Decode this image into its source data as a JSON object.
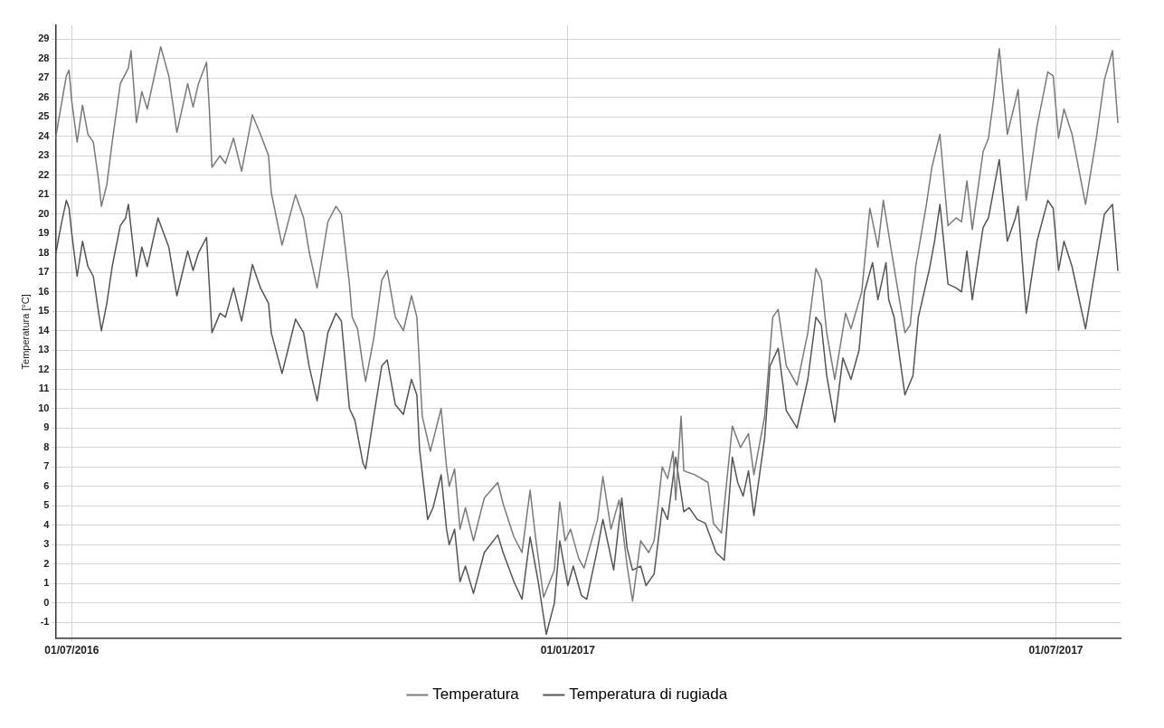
{
  "chart_data": {
    "type": "line",
    "ylabel": "Temperatura [°C]",
    "xlim": [
      "2016-06-25",
      "2017-07-25"
    ],
    "ylim": [
      -1.8,
      29.7
    ],
    "xticks": [
      {
        "value": "2016-07-01",
        "label": "01/07/2016"
      },
      {
        "value": "2017-01-01",
        "label": "01/01/2017"
      },
      {
        "value": "2017-07-01",
        "label": "01/07/2017"
      }
    ],
    "yticks": [
      -1,
      0,
      1,
      2,
      3,
      4,
      5,
      6,
      7,
      8,
      9,
      10,
      11,
      12,
      13,
      14,
      15,
      16,
      17,
      18,
      19,
      20,
      21,
      22,
      23,
      24,
      25,
      26,
      27,
      28,
      29
    ],
    "grid": true,
    "legend": "bottom",
    "marker": "none",
    "line_style": "solid",
    "series": [
      {
        "name": "Temperatura",
        "color": "#7a7a7a",
        "x": [
          "2016-06-25",
          "2016-06-26",
          "2016-06-29",
          "2016-06-30",
          "2016-07-01",
          "2016-07-03",
          "2016-07-05",
          "2016-07-07",
          "2016-07-09",
          "2016-07-11",
          "2016-07-12",
          "2016-07-14",
          "2016-07-16",
          "2016-07-19",
          "2016-07-22",
          "2016-07-23",
          "2016-07-25",
          "2016-07-27",
          "2016-07-29",
          "2016-08-03",
          "2016-08-06",
          "2016-08-09",
          "2016-08-13",
          "2016-08-15",
          "2016-08-17",
          "2016-08-20",
          "2016-08-21",
          "2016-08-22",
          "2016-08-25",
          "2016-08-27",
          "2016-08-30",
          "2016-09-02",
          "2016-09-06",
          "2016-09-09",
          "2016-09-12",
          "2016-09-13",
          "2016-09-17",
          "2016-09-22",
          "2016-09-25",
          "2016-09-27",
          "2016-09-30",
          "2016-10-04",
          "2016-10-07",
          "2016-10-09",
          "2016-10-12",
          "2016-10-13",
          "2016-10-15",
          "2016-10-17",
          "2016-10-18",
          "2016-10-21",
          "2016-10-24",
          "2016-10-26",
          "2016-10-29",
          "2016-11-01",
          "2016-11-04",
          "2016-11-06",
          "2016-11-08",
          "2016-11-11",
          "2016-11-15",
          "2016-11-17",
          "2016-11-18",
          "2016-11-20",
          "2016-11-22",
          "2016-11-24",
          "2016-11-27",
          "2016-12-01",
          "2016-12-06",
          "2016-12-08",
          "2016-12-12",
          "2016-12-15",
          "2016-12-18",
          "2016-12-20",
          "2016-12-23",
          "2016-12-27",
          "2016-12-29",
          "2016-12-31",
          "2017-01-02",
          "2017-01-05",
          "2017-01-07",
          "2017-01-12",
          "2017-01-14",
          "2017-01-17",
          "2017-01-20",
          "2017-01-23",
          "2017-01-25",
          "2017-01-28",
          "2017-01-31",
          "2017-02-02",
          "2017-02-05",
          "2017-02-07",
          "2017-02-09",
          "2017-02-10",
          "2017-02-12",
          "2017-02-13",
          "2017-02-17",
          "2017-02-22",
          "2017-02-24",
          "2017-02-27",
          "2017-03-03",
          "2017-03-06",
          "2017-03-09",
          "2017-03-11",
          "2017-03-15",
          "2017-03-18",
          "2017-03-20",
          "2017-03-23",
          "2017-03-27",
          "2017-03-31",
          "2017-04-03",
          "2017-04-05",
          "2017-04-07",
          "2017-04-10",
          "2017-04-14",
          "2017-04-16",
          "2017-04-20",
          "2017-04-23",
          "2017-04-26",
          "2017-04-28",
          "2017-05-01",
          "2017-05-06",
          "2017-05-08",
          "2017-05-10",
          "2017-05-14",
          "2017-05-16",
          "2017-05-19",
          "2017-05-22",
          "2017-05-25",
          "2017-05-27",
          "2017-05-29",
          "2017-05-31",
          "2017-06-04",
          "2017-06-06",
          "2017-06-08",
          "2017-06-10",
          "2017-06-13",
          "2017-06-16",
          "2017-06-17",
          "2017-06-20",
          "2017-06-24",
          "2017-06-28",
          "2017-06-30",
          "2017-07-02",
          "2017-07-04",
          "2017-07-07",
          "2017-07-12",
          "2017-07-16",
          "2017-07-19",
          "2017-07-22",
          "2017-07-24"
        ],
        "values": [
          23.9,
          24.7,
          27.1,
          27.4,
          25.8,
          23.7,
          25.6,
          24.1,
          23.7,
          21.7,
          20.4,
          21.5,
          23.7,
          26.7,
          27.5,
          28.4,
          24.7,
          26.3,
          25.4,
          28.6,
          27.1,
          24.2,
          26.7,
          25.5,
          26.7,
          27.8,
          25.5,
          22.4,
          23.0,
          22.6,
          23.9,
          22.2,
          25.1,
          24.1,
          23.0,
          21.1,
          18.4,
          21.0,
          19.8,
          18.1,
          16.2,
          19.6,
          20.4,
          20.0,
          16.4,
          14.7,
          14.1,
          12.2,
          11.4,
          13.6,
          16.6,
          17.1,
          14.7,
          14.0,
          15.8,
          14.7,
          9.6,
          7.8,
          10.0,
          7.0,
          6.0,
          6.9,
          3.8,
          4.9,
          3.2,
          5.4,
          6.2,
          5.1,
          3.4,
          2.6,
          5.8,
          3.4,
          0.3,
          1.7,
          5.2,
          3.2,
          3.8,
          2.3,
          1.8,
          4.3,
          6.5,
          3.8,
          5.3,
          1.9,
          0.1,
          3.2,
          2.6,
          3.2,
          7.0,
          6.4,
          7.8,
          5.3,
          9.6,
          6.8,
          6.6,
          6.2,
          4.1,
          3.6,
          9.1,
          8.0,
          8.7,
          6.6,
          9.6,
          14.7,
          15.1,
          12.2,
          11.2,
          13.9,
          17.2,
          16.6,
          13.9,
          11.5,
          14.9,
          14.1,
          16.0,
          20.3,
          18.3,
          20.7,
          18.1,
          13.9,
          14.3,
          17.3,
          20.5,
          22.4,
          24.1,
          19.4,
          19.8,
          19.6,
          21.7,
          19.2,
          23.2,
          23.9,
          26.0,
          28.5,
          24.1,
          25.8,
          26.4,
          20.7,
          24.5,
          27.3,
          27.1,
          23.9,
          25.4,
          24.1,
          20.5,
          23.9,
          26.9,
          28.4,
          24.7
        ]
      },
      {
        "name": "Temperatura di rugiada",
        "color": "#555555",
        "x": [
          "2016-06-25",
          "2016-06-27",
          "2016-06-29",
          "2016-06-30",
          "2016-07-01",
          "2016-07-03",
          "2016-07-05",
          "2016-07-07",
          "2016-07-09",
          "2016-07-11",
          "2016-07-12",
          "2016-07-14",
          "2016-07-16",
          "2016-07-19",
          "2016-07-21",
          "2016-07-22",
          "2016-07-25",
          "2016-07-27",
          "2016-07-29",
          "2016-08-02",
          "2016-08-06",
          "2016-08-09",
          "2016-08-13",
          "2016-08-15",
          "2016-08-17",
          "2016-08-20",
          "2016-08-21",
          "2016-08-22",
          "2016-08-25",
          "2016-08-27",
          "2016-08-30",
          "2016-09-02",
          "2016-09-06",
          "2016-09-09",
          "2016-09-12",
          "2016-09-13",
          "2016-09-17",
          "2016-09-22",
          "2016-09-25",
          "2016-09-27",
          "2016-09-30",
          "2016-10-04",
          "2016-10-07",
          "2016-10-09",
          "2016-10-12",
          "2016-10-14",
          "2016-10-17",
          "2016-10-18",
          "2016-10-21",
          "2016-10-24",
          "2016-10-26",
          "2016-10-29",
          "2016-11-01",
          "2016-11-04",
          "2016-11-06",
          "2016-11-07",
          "2016-11-10",
          "2016-11-12",
          "2016-11-15",
          "2016-11-17",
          "2016-11-18",
          "2016-11-20",
          "2016-11-22",
          "2016-11-24",
          "2016-11-27",
          "2016-12-01",
          "2016-12-06",
          "2016-12-08",
          "2016-12-12",
          "2016-12-15",
          "2016-12-18",
          "2016-12-21",
          "2016-12-24",
          "2016-12-27",
          "2016-12-29",
          "2017-01-01",
          "2017-01-03",
          "2017-01-06",
          "2017-01-08",
          "2017-01-12",
          "2017-01-14",
          "2017-01-18",
          "2017-01-21",
          "2017-01-23",
          "2017-01-25",
          "2017-01-28",
          "2017-01-30",
          "2017-02-02",
          "2017-02-05",
          "2017-02-07",
          "2017-02-10",
          "2017-02-13",
          "2017-02-15",
          "2017-02-18",
          "2017-02-21",
          "2017-02-25",
          "2017-02-28",
          "2017-03-03",
          "2017-03-05",
          "2017-03-07",
          "2017-03-09",
          "2017-03-11",
          "2017-03-15",
          "2017-03-17",
          "2017-03-20",
          "2017-03-23",
          "2017-03-27",
          "2017-03-31",
          "2017-04-03",
          "2017-04-05",
          "2017-04-07",
          "2017-04-10",
          "2017-04-13",
          "2017-04-16",
          "2017-04-19",
          "2017-04-21",
          "2017-04-24",
          "2017-04-26",
          "2017-04-29",
          "2017-04-30",
          "2017-05-02",
          "2017-05-06",
          "2017-05-09",
          "2017-05-11",
          "2017-05-15",
          "2017-05-17",
          "2017-05-19",
          "2017-05-22",
          "2017-05-25",
          "2017-05-27",
          "2017-05-29",
          "2017-05-31",
          "2017-06-04",
          "2017-06-06",
          "2017-06-08",
          "2017-06-10",
          "2017-06-13",
          "2017-06-16",
          "2017-06-17",
          "2017-06-20",
          "2017-06-24",
          "2017-06-28",
          "2017-06-30",
          "2017-07-02",
          "2017-07-04",
          "2017-07-07",
          "2017-07-12",
          "2017-07-16",
          "2017-07-19",
          "2017-07-22",
          "2017-07-24"
        ],
        "values": [
          17.9,
          19.4,
          20.7,
          20.3,
          19.0,
          16.8,
          18.6,
          17.3,
          16.8,
          14.9,
          14.0,
          15.4,
          17.3,
          19.4,
          19.8,
          20.5,
          16.8,
          18.3,
          17.3,
          19.8,
          18.3,
          15.8,
          18.1,
          17.1,
          18.0,
          18.8,
          16.4,
          13.9,
          14.9,
          14.7,
          16.2,
          14.5,
          17.4,
          16.2,
          15.4,
          13.9,
          11.8,
          14.6,
          13.9,
          12.2,
          10.4,
          13.9,
          14.9,
          14.5,
          10.0,
          9.4,
          7.2,
          6.9,
          9.6,
          12.2,
          12.5,
          10.2,
          9.7,
          11.5,
          10.7,
          7.9,
          4.3,
          4.9,
          6.6,
          3.8,
          3.0,
          3.8,
          1.1,
          1.9,
          0.5,
          2.6,
          3.5,
          2.6,
          1.1,
          0.2,
          3.4,
          1.1,
          -1.6,
          0.0,
          3.2,
          0.9,
          1.9,
          0.4,
          0.2,
          2.8,
          4.3,
          1.7,
          5.4,
          2.8,
          1.7,
          1.9,
          0.9,
          1.5,
          4.9,
          4.3,
          7.5,
          4.7,
          4.9,
          4.3,
          4.1,
          2.6,
          2.2,
          7.5,
          6.2,
          5.5,
          6.8,
          4.5,
          8.5,
          12.2,
          13.1,
          9.9,
          9.0,
          11.5,
          14.7,
          14.3,
          11.7,
          9.3,
          12.6,
          11.5,
          13.0,
          16.0,
          17.5,
          15.6,
          17.5,
          15.6,
          14.7,
          10.7,
          11.7,
          14.7,
          17.1,
          18.6,
          20.5,
          16.4,
          16.2,
          16.0,
          18.1,
          15.6,
          19.3,
          19.8,
          21.3,
          22.8,
          18.6,
          19.8,
          20.4,
          14.9,
          18.6,
          20.7,
          20.3,
          17.1,
          18.6,
          17.3,
          14.1,
          17.5,
          20.0,
          20.5,
          17.1
        ]
      }
    ]
  }
}
